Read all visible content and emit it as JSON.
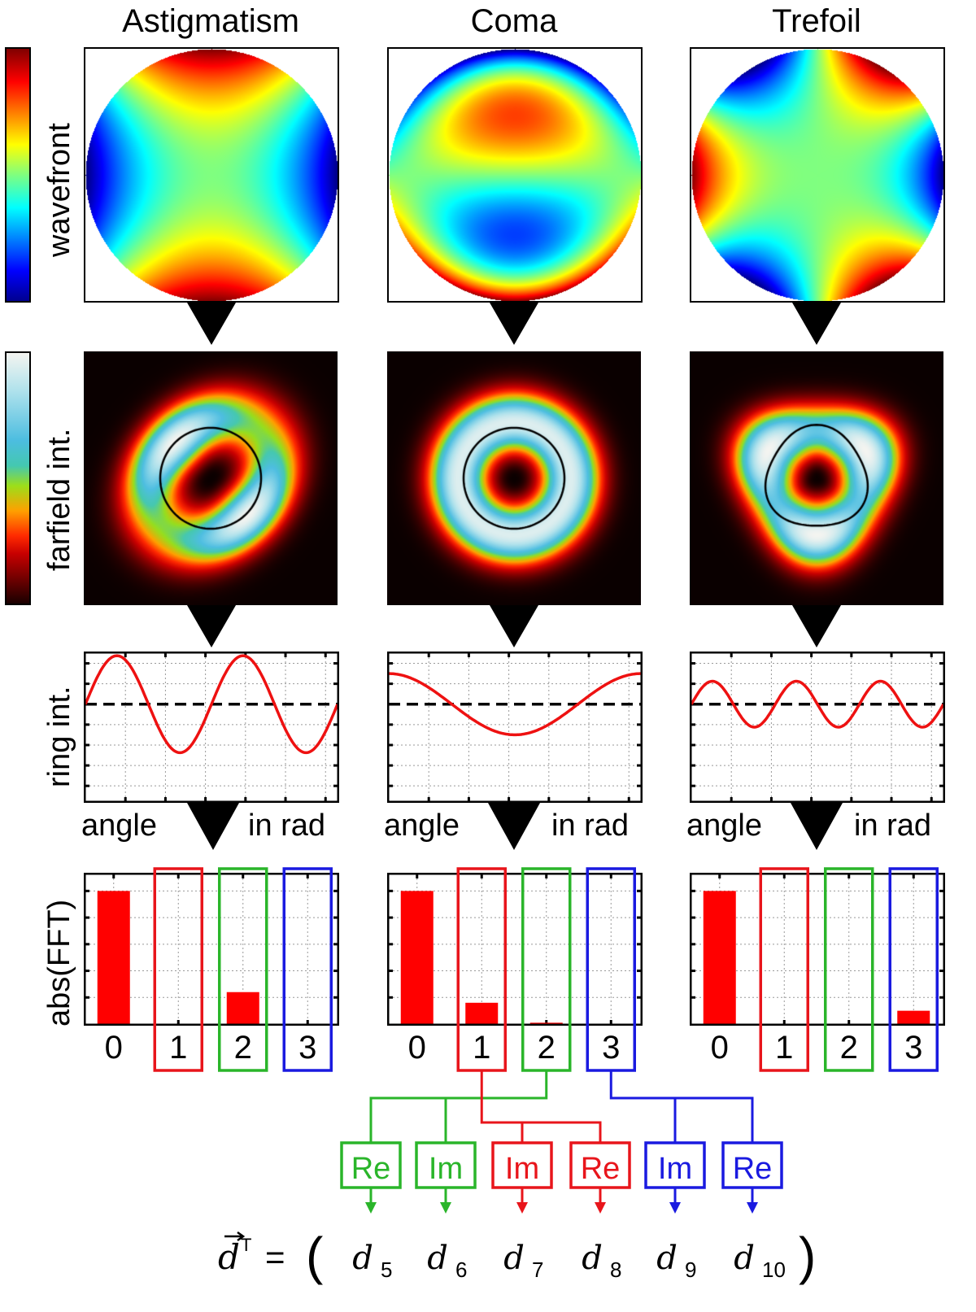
{
  "columns": [
    {
      "title": "Astigmatism",
      "order": 2
    },
    {
      "title": "Coma",
      "order": 1
    },
    {
      "title": "Trefoil",
      "order": 3
    }
  ],
  "row_labels": {
    "wavefront": "wavefront",
    "farfield": "farfield int.",
    "ring": "ring int.",
    "fft": "abs(FFT)"
  },
  "ring_axis": {
    "left": "angle",
    "right": "in rad"
  },
  "colors": {
    "red": "#e8151b",
    "green": "#2ab52a",
    "blue": "#1a1ae0",
    "bar": "#ff0000",
    "curve": "#ee1111"
  },
  "chart_data": [
    {
      "type": "line",
      "title": "Astigmatism ring intensity",
      "xlabel": "angle in rad",
      "ylabel": "ring int.",
      "xlim": [
        0,
        6.283
      ],
      "ylim": [
        -1.9,
        1.0
      ],
      "baseline": 0,
      "series": [
        {
          "name": "ring int.",
          "formula": "sin(2x)",
          "amplitude": 0.95,
          "harmonic": 2,
          "phase": 0
        }
      ]
    },
    {
      "type": "line",
      "title": "Coma ring intensity",
      "xlabel": "angle in rad",
      "ylabel": "ring int.",
      "xlim": [
        0,
        6.283
      ],
      "ylim": [
        -1.9,
        1.0
      ],
      "baseline": 0,
      "series": [
        {
          "name": "ring int.",
          "formula": "cos(x)",
          "amplitude": 0.6,
          "harmonic": 1,
          "phase": 1.5708
        }
      ]
    },
    {
      "type": "line",
      "title": "Trefoil ring intensity",
      "xlabel": "angle in rad",
      "ylabel": "ring int.",
      "xlim": [
        0,
        6.283
      ],
      "ylim": [
        -1.9,
        1.0
      ],
      "baseline": 0,
      "series": [
        {
          "name": "ring int.",
          "formula": "sin(3x)",
          "amplitude": 0.45,
          "harmonic": 3,
          "phase": 0
        }
      ]
    },
    {
      "type": "bar",
      "title": "Astigmatism abs(FFT)",
      "ylabel": "abs(FFT)",
      "categories": [
        "0",
        "1",
        "2",
        "3"
      ],
      "values": [
        1.0,
        0.0,
        0.24,
        0.0
      ],
      "ylim": [
        0,
        1.1
      ],
      "grid": true
    },
    {
      "type": "bar",
      "title": "Coma abs(FFT)",
      "ylabel": "abs(FFT)",
      "categories": [
        "0",
        "1",
        "2",
        "3"
      ],
      "values": [
        1.0,
        0.16,
        0.01,
        0.0
      ],
      "ylim": [
        0,
        1.1
      ],
      "grid": true
    },
    {
      "type": "bar",
      "title": "Trefoil abs(FFT)",
      "ylabel": "abs(FFT)",
      "categories": [
        "0",
        "1",
        "2",
        "3"
      ],
      "values": [
        1.0,
        0.0,
        0.0,
        0.1
      ],
      "ylim": [
        0,
        1.1
      ],
      "grid": true
    }
  ],
  "highlight_boxes": [
    {
      "harmonic": "1",
      "color": "red"
    },
    {
      "harmonic": "2",
      "color": "green"
    },
    {
      "harmonic": "3",
      "color": "blue"
    }
  ],
  "components": [
    {
      "label": "Re",
      "color": "green",
      "var": "d",
      "sub": "5"
    },
    {
      "label": "Im",
      "color": "green",
      "var": "d",
      "sub": "6"
    },
    {
      "label": "Im",
      "color": "red",
      "var": "d",
      "sub": "7"
    },
    {
      "label": "Re",
      "color": "red",
      "var": "d",
      "sub": "8"
    },
    {
      "label": "Im",
      "color": "blue",
      "var": "d",
      "sub": "9"
    },
    {
      "label": "Re",
      "color": "blue",
      "var": "d",
      "sub": "10"
    }
  ],
  "formula": {
    "lhs": "d",
    "superscript": "T",
    "equals": "=",
    "open": "(",
    "close": ")"
  }
}
